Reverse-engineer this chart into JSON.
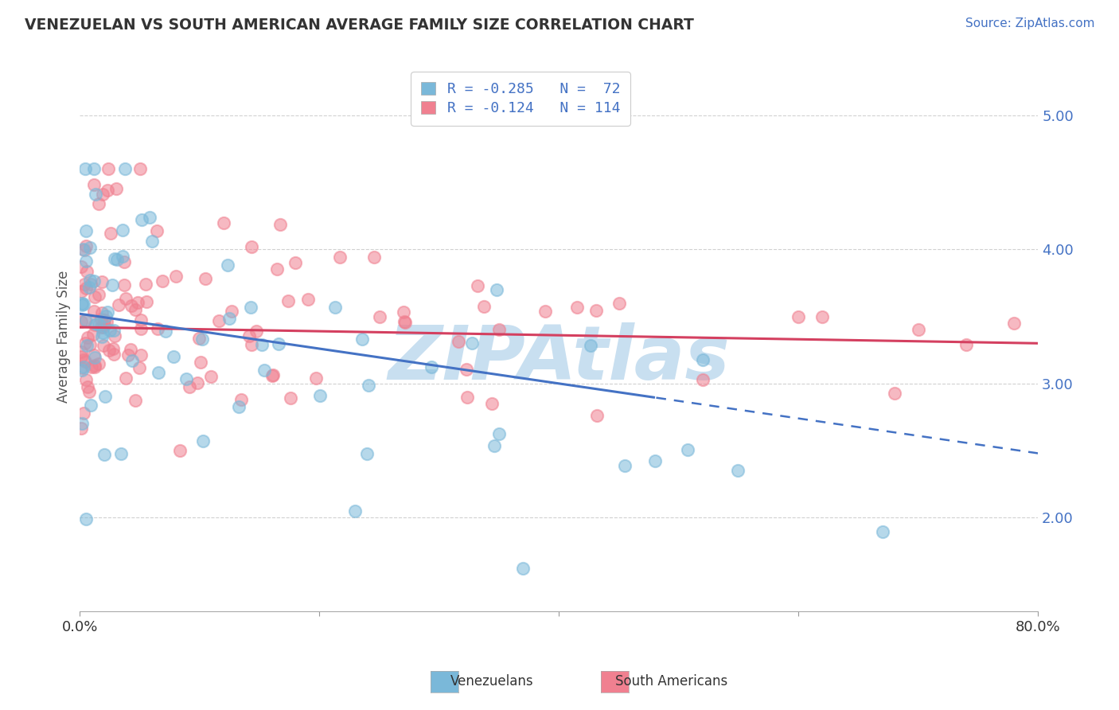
{
  "title": "VENEZUELAN VS SOUTH AMERICAN AVERAGE FAMILY SIZE CORRELATION CHART",
  "source_text": "Source: ZipAtlas.com",
  "ylabel": "Average Family Size",
  "yticks": [
    2.0,
    3.0,
    4.0,
    5.0
  ],
  "xlim": [
    0.0,
    80.0
  ],
  "ylim": [
    1.3,
    5.4
  ],
  "legend_line1": "R = -0.285   N =  72",
  "legend_line2": "R = -0.124   N = 114",
  "color_venezuelan": "#7ab8d9",
  "color_south_american": "#f08090",
  "color_trend_venezuelan": "#4472c4",
  "color_trend_south_american": "#d44060",
  "watermark_text": "ZIPAtlas",
  "watermark_color": "#c8dff0",
  "background_color": "#ffffff",
  "ven_intercept": 3.52,
  "ven_slope": -0.013,
  "sa_intercept": 3.42,
  "sa_slope": -0.0015,
  "ven_solid_end": 48.0,
  "sa_solid_end": 80.0,
  "ven_x_max": 80.0,
  "sa_x_max": 80.0
}
